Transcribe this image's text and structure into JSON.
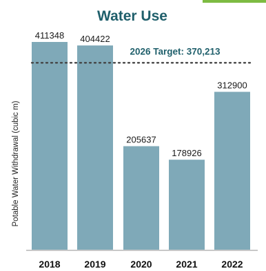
{
  "chart_data": {
    "type": "bar",
    "title": "Water Use",
    "ylabel": "Potable Water Withdrawal (cubic m)",
    "xlabel": "",
    "categories": [
      "2018",
      "2019",
      "2020",
      "2021",
      "2022"
    ],
    "values": [
      411348,
      404422,
      205637,
      178926,
      312900
    ],
    "value_labels": [
      "411348",
      "404422",
      "205637",
      "178926",
      "312900"
    ],
    "target": {
      "label": "2026 Target: 370,213",
      "value": 370213
    },
    "ylim": [
      0,
      411348
    ],
    "grid": false,
    "legend": "none",
    "colors": {
      "bar": "#7fa9b8",
      "title": "#1f5f6b",
      "target_line": "#444444",
      "accent": "#7dbb42"
    }
  }
}
